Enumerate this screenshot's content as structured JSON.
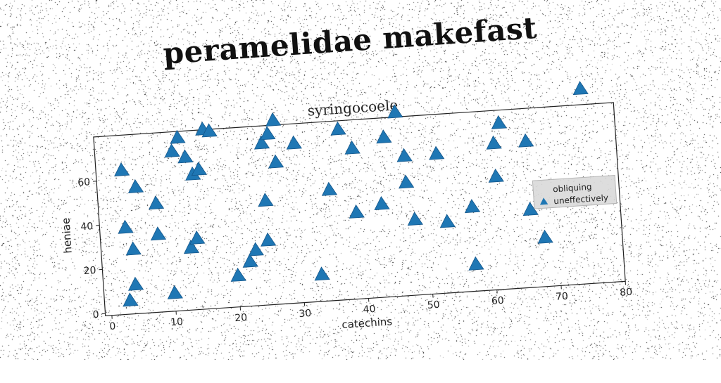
{
  "title": "peramelidae makefast",
  "chart_data": {
    "type": "scatter",
    "subtitle": "syringocoele",
    "xlabel": "catechins",
    "ylabel": "heniae",
    "xlim": [
      -1,
      80
    ],
    "ylim": [
      -1,
      80
    ],
    "xticks": [
      0,
      10,
      20,
      30,
      40,
      50,
      60,
      70,
      80
    ],
    "yticks": [
      0,
      20,
      40,
      60
    ],
    "grid": false,
    "legend": {
      "placement": "right",
      "entries": [
        "obliquing",
        "uneffectively"
      ]
    },
    "series": [
      {
        "name": "obliquing",
        "marker": "none",
        "color": "#cccccc",
        "points": []
      },
      {
        "name": "uneffectively",
        "marker": "triangle",
        "color": "#1f77b4",
        "points": [
          [
            3,
            64
          ],
          [
            3,
            5
          ],
          [
            3,
            38
          ],
          [
            4,
            28
          ],
          [
            4,
            12
          ],
          [
            5,
            56
          ],
          [
            8,
            48
          ],
          [
            8,
            34
          ],
          [
            10,
            7
          ],
          [
            11,
            71
          ],
          [
            12,
            77
          ],
          [
            13,
            27
          ],
          [
            13,
            68
          ],
          [
            14,
            31
          ],
          [
            14,
            60
          ],
          [
            15,
            62
          ],
          [
            16,
            80
          ],
          [
            17,
            79
          ],
          [
            20,
            13
          ],
          [
            22,
            19
          ],
          [
            23,
            24
          ],
          [
            25,
            28
          ],
          [
            25,
            72
          ],
          [
            25,
            46
          ],
          [
            26,
            76
          ],
          [
            27,
            82
          ],
          [
            27,
            63
          ],
          [
            30,
            71
          ],
          [
            33,
            11
          ],
          [
            35,
            49
          ],
          [
            37,
            76
          ],
          [
            39,
            38
          ],
          [
            39,
            67
          ],
          [
            43,
            41
          ],
          [
            44,
            71
          ],
          [
            46,
            82
          ],
          [
            47,
            50
          ],
          [
            47,
            62
          ],
          [
            48,
            33
          ],
          [
            52,
            62
          ],
          [
            53,
            31
          ],
          [
            57,
            11
          ],
          [
            57,
            37
          ],
          [
            61,
            65
          ],
          [
            61,
            50
          ],
          [
            62,
            74
          ],
          [
            66,
            65
          ],
          [
            66,
            34
          ],
          [
            68,
            21
          ],
          [
            75,
            87
          ]
        ]
      }
    ]
  },
  "colors": {
    "marker": "#1f77b4",
    "axes": "#222222",
    "legend_bg": "#d9d9d9"
  }
}
